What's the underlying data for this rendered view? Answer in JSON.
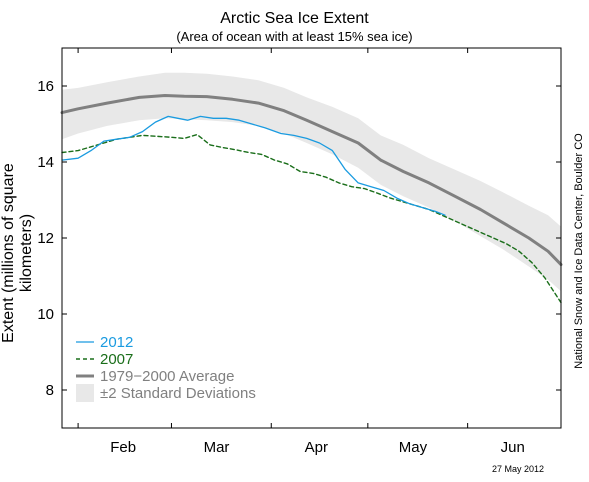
{
  "chart_data": {
    "type": "line",
    "title": "Arctic Sea Ice Extent",
    "subtitle": "(Area of ocean with at least 15% sea ice)",
    "ylabel": "Extent (millions of square kilometers)",
    "xlabel": "",
    "ylim": [
      7,
      17
    ],
    "xlim": [
      "Jan 27",
      "Jun 30"
    ],
    "y_ticks": [
      8,
      10,
      12,
      14,
      16
    ],
    "x_tick_labels": [
      "Feb",
      "Mar",
      "Apr",
      "May",
      "Jun"
    ],
    "grid": false,
    "legend_position": "bottom-left",
    "series": [
      {
        "name": "2012",
        "color": "#1a9be0",
        "style": "solid",
        "x": [
          "Jan 27",
          "Feb 1",
          "Feb 5",
          "Feb 9",
          "Feb 13",
          "Feb 17",
          "Feb 21",
          "Feb 25",
          "Feb 29",
          "Mar 3",
          "Mar 6",
          "Mar 10",
          "Mar 14",
          "Mar 18",
          "Mar 22",
          "Mar 26",
          "Mar 30",
          "Apr 4",
          "Apr 8",
          "Apr 12",
          "Apr 16",
          "Apr 20",
          "Apr 24",
          "Apr 28",
          "May 2",
          "May 6",
          "May 10",
          "May 14",
          "May 18",
          "May 22",
          "May 25"
        ],
        "values": [
          14.05,
          14.1,
          14.3,
          14.55,
          14.6,
          14.65,
          14.8,
          15.05,
          15.2,
          15.15,
          15.1,
          15.2,
          15.15,
          15.15,
          15.1,
          15.0,
          14.9,
          14.75,
          14.7,
          14.62,
          14.5,
          14.3,
          13.8,
          13.45,
          13.35,
          13.25,
          13.05,
          12.9,
          12.8,
          12.7,
          12.6
        ]
      },
      {
        "name": "2007",
        "color": "#1a6e1a",
        "style": "dashed",
        "x": [
          "Jan 27",
          "Feb 1",
          "Feb 5",
          "Feb 9",
          "Feb 13",
          "Feb 17",
          "Feb 21",
          "Feb 25",
          "Mar 1",
          "Mar 5",
          "Mar 9",
          "Mar 13",
          "Mar 17",
          "Mar 21",
          "Mar 25",
          "Mar 29",
          "Apr 2",
          "Apr 6",
          "Apr 10",
          "Apr 14",
          "Apr 18",
          "Apr 22",
          "Apr 26",
          "Apr 30",
          "May 4",
          "May 8",
          "May 12",
          "May 16",
          "May 20",
          "May 24",
          "May 28",
          "Jun 1",
          "Jun 5",
          "Jun 9",
          "Jun 13",
          "Jun 17",
          "Jun 21",
          "Jun 25",
          "Jun 30"
        ],
        "values": [
          14.25,
          14.3,
          14.4,
          14.5,
          14.6,
          14.65,
          14.7,
          14.68,
          14.65,
          14.62,
          14.72,
          14.45,
          14.38,
          14.32,
          14.25,
          14.2,
          14.05,
          13.95,
          13.75,
          13.7,
          13.6,
          13.45,
          13.35,
          13.3,
          13.18,
          13.05,
          12.95,
          12.85,
          12.75,
          12.6,
          12.45,
          12.3,
          12.15,
          12.0,
          11.85,
          11.65,
          11.35,
          10.95,
          10.3
        ]
      },
      {
        "name": "1979−2000 Average",
        "color": "#808080",
        "style": "solid",
        "x": [
          "Jan 27",
          "Feb 1",
          "Feb 10",
          "Feb 20",
          "Feb 28",
          "Mar 5",
          "Mar 12",
          "Mar 20",
          "Mar 28",
          "Apr 5",
          "Apr 12",
          "Apr 20",
          "Apr 28",
          "May 5",
          "May 12",
          "May 20",
          "May 28",
          "Jun 5",
          "Jun 12",
          "Jun 20",
          "Jun 26",
          "Jun 30"
        ],
        "values": [
          15.3,
          15.4,
          15.55,
          15.7,
          15.75,
          15.73,
          15.72,
          15.65,
          15.55,
          15.35,
          15.1,
          14.8,
          14.5,
          14.05,
          13.75,
          13.45,
          13.1,
          12.75,
          12.4,
          12.0,
          11.65,
          11.3
        ]
      }
    ],
    "band": {
      "name": "±2 Standard Deviations",
      "color": "#e8e8e8",
      "x": [
        "Jan 27",
        "Feb 1",
        "Feb 10",
        "Feb 20",
        "Feb 28",
        "Mar 5",
        "Mar 12",
        "Mar 20",
        "Mar 28",
        "Apr 5",
        "Apr 12",
        "Apr 20",
        "Apr 28",
        "May 5",
        "May 12",
        "May 20",
        "May 28",
        "Jun 5",
        "Jun 12",
        "Jun 20",
        "Jun 26",
        "Jun 30"
      ],
      "upper": [
        15.9,
        15.95,
        16.1,
        16.25,
        16.35,
        16.35,
        16.32,
        16.25,
        16.15,
        15.95,
        15.7,
        15.45,
        15.15,
        14.7,
        14.45,
        14.1,
        13.8,
        13.5,
        13.2,
        12.85,
        12.6,
        12.3
      ],
      "lower": [
        14.6,
        14.75,
        14.95,
        15.1,
        15.15,
        15.13,
        15.1,
        15.05,
        14.95,
        14.75,
        14.5,
        14.2,
        13.85,
        13.4,
        13.1,
        12.8,
        12.45,
        12.05,
        11.7,
        11.25,
        10.9,
        10.6
      ]
    },
    "annotations": {
      "credit": "National Snow and Ice Data Center, Boulder CO",
      "date_stamp": "27 May 2012"
    }
  }
}
